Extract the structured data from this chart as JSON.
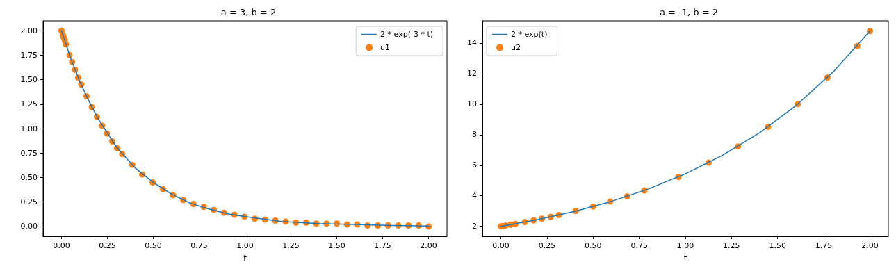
{
  "chart_data": [
    {
      "type": "line",
      "title": "a = 3, b = 2",
      "xlabel": "t",
      "xlim": [
        -0.1,
        2.1
      ],
      "ylim": [
        -0.1,
        2.1
      ],
      "xticks": [
        {
          "value": 0,
          "label": "0.00"
        },
        {
          "value": 0.25,
          "label": "0.25"
        },
        {
          "value": 0.5,
          "label": "0.50"
        },
        {
          "value": 0.75,
          "label": "0.75"
        },
        {
          "value": 1,
          "label": "1.00"
        },
        {
          "value": 1.25,
          "label": "1.25"
        },
        {
          "value": 1.5,
          "label": "1.50"
        },
        {
          "value": 1.75,
          "label": "1.75"
        },
        {
          "value": 2,
          "label": "2.00"
        }
      ],
      "yticks": [
        {
          "value": 0,
          "label": "0.00"
        },
        {
          "value": 0.25,
          "label": "0.25"
        },
        {
          "value": 0.5,
          "label": "0.50"
        },
        {
          "value": 0.75,
          "label": "0.75"
        },
        {
          "value": 1,
          "label": "1.00"
        },
        {
          "value": 1.25,
          "label": "1.25"
        },
        {
          "value": 1.5,
          "label": "1.50"
        },
        {
          "value": 1.75,
          "label": "1.75"
        },
        {
          "value": 2,
          "label": "2.00"
        }
      ],
      "grid": false,
      "legend": "top right",
      "series": [
        {
          "name": "2 * exp(-3 * t)",
          "color": "#1f77b4",
          "line_style": "solid",
          "x": [
            0,
            0.05,
            0.1,
            0.15,
            0.2,
            0.3,
            0.4,
            0.5,
            0.6,
            0.7,
            0.8,
            0.9,
            1.0,
            1.2,
            1.4,
            1.6,
            1.8,
            2.0
          ],
          "values": [
            2.0,
            1.72,
            1.48,
            1.28,
            1.1,
            0.81,
            0.6,
            0.45,
            0.33,
            0.24,
            0.18,
            0.13,
            0.1,
            0.05,
            0.03,
            0.02,
            0.01,
            0.005
          ]
        },
        {
          "name": "u1",
          "type": "scatter",
          "marker": "circle",
          "color": "#ff7f0e",
          "x": [
            0,
            0.007,
            0.012,
            0.018,
            0.024,
            0.044,
            0.058,
            0.074,
            0.091,
            0.108,
            0.137,
            0.165,
            0.193,
            0.221,
            0.248,
            0.276,
            0.303,
            0.331,
            0.386,
            0.44,
            0.497,
            0.553,
            0.607,
            0.664,
            0.719,
            0.775,
            0.83,
            0.886,
            0.942,
            0.997,
            1.053,
            1.109,
            1.165,
            1.221,
            1.277,
            1.333,
            1.388,
            1.444,
            1.5,
            1.556,
            1.611,
            1.667,
            1.723,
            1.779,
            1.835,
            1.89,
            1.946,
            2.0
          ],
          "values": [
            2.0,
            1.96,
            1.93,
            1.9,
            1.86,
            1.75,
            1.68,
            1.6,
            1.52,
            1.45,
            1.33,
            1.22,
            1.12,
            1.03,
            0.95,
            0.87,
            0.8,
            0.74,
            0.63,
            0.53,
            0.45,
            0.38,
            0.32,
            0.27,
            0.23,
            0.2,
            0.17,
            0.14,
            0.12,
            0.1,
            0.08,
            0.07,
            0.06,
            0.05,
            0.04,
            0.04,
            0.03,
            0.03,
            0.03,
            0.02,
            0.02,
            0.01,
            0.01,
            0.01,
            0.01,
            0.01,
            0.01,
            0.0
          ]
        }
      ]
    },
    {
      "type": "line",
      "title": "a = -1, b = 2",
      "xlabel": "t",
      "xlim": [
        -0.1,
        2.1
      ],
      "ylim": [
        1.35,
        15.45
      ],
      "xticks": [
        {
          "value": 0,
          "label": "0.00"
        },
        {
          "value": 0.25,
          "label": "0.25"
        },
        {
          "value": 0.5,
          "label": "0.50"
        },
        {
          "value": 0.75,
          "label": "0.75"
        },
        {
          "value": 1,
          "label": "1.00"
        },
        {
          "value": 1.25,
          "label": "1.25"
        },
        {
          "value": 1.5,
          "label": "1.50"
        },
        {
          "value": 1.75,
          "label": "1.75"
        },
        {
          "value": 2,
          "label": "2.00"
        }
      ],
      "yticks": [
        2,
        4,
        6,
        8,
        10,
        12,
        14
      ],
      "grid": false,
      "legend": "top left",
      "series": [
        {
          "name": "2 * exp(t)",
          "color": "#1f77b4",
          "line_style": "solid",
          "x": [
            0,
            0.2,
            0.4,
            0.6,
            0.8,
            1.0,
            1.2,
            1.4,
            1.6,
            1.8,
            2.0
          ],
          "values": [
            2.0,
            2.44,
            2.98,
            3.64,
            4.45,
            5.44,
            6.64,
            8.11,
            9.91,
            12.1,
            14.78
          ]
        },
        {
          "name": "u2",
          "type": "scatter",
          "marker": "circle",
          "color": "#ff7f0e",
          "x": [
            0,
            0.012,
            0.025,
            0.052,
            0.078,
            0.13,
            0.177,
            0.222,
            0.27,
            0.314,
            0.406,
            0.5,
            0.592,
            0.684,
            0.778,
            0.962,
            1.126,
            1.285,
            1.448,
            1.609,
            1.77,
            1.932,
            2.0
          ],
          "values": [
            2.0,
            2.02,
            2.05,
            2.11,
            2.16,
            2.28,
            2.39,
            2.5,
            2.62,
            2.74,
            3.0,
            3.3,
            3.62,
            3.96,
            4.35,
            5.23,
            6.17,
            7.23,
            8.51,
            10.0,
            11.74,
            13.8,
            14.78
          ]
        }
      ]
    }
  ]
}
